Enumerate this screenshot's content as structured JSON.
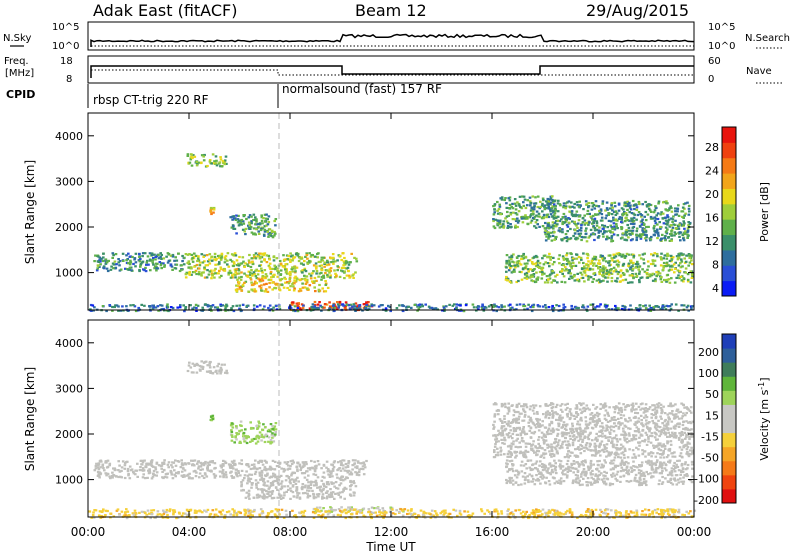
{
  "header": {
    "site": "Adak East (fitACF)",
    "beam": "Beam 12",
    "date": "29/Aug/2015"
  },
  "summary_panels": {
    "nsky_label": "N.Sky",
    "nsearch_label": "N.Search",
    "nsky_ticks": [
      "10^5",
      "10^0"
    ],
    "nsearch_ticks": [
      "10^5",
      "10^0"
    ],
    "freq_label_1": "Freq.",
    "freq_label_2": "[MHz]",
    "freq_ticks": [
      "18",
      "8"
    ],
    "nave_label": "Nave",
    "nave_ticks": [
      "60",
      "0"
    ],
    "cpid_label": "CPID",
    "cpid_segments": [
      {
        "label": "rbsp CT-trig 220 RF",
        "start_hour": 0,
        "end_hour": 7.5
      },
      {
        "label": "normalsound (fast) 157 RF",
        "start_hour": 7.5,
        "end_hour": 24
      }
    ]
  },
  "colors": {
    "power_scale": [
      "#0b1cf5",
      "#2a4fd6",
      "#2e6e9e",
      "#3a8f6a",
      "#5fb04a",
      "#9fce3a",
      "#e8d81a",
      "#f2a51a",
      "#f57a15",
      "#f0410f",
      "#e8140d"
    ],
    "velocity_scale": [
      "#1f3fb8",
      "#2e5f9a",
      "#3f7d5a",
      "#5fb53a",
      "#9ed45a",
      "#c8c8c4",
      "#c8c8c4",
      "#f5d03a",
      "#f5a526",
      "#f57a18",
      "#f0440f",
      "#e01010"
    ],
    "ground_scatter": "#c0c0bc"
  },
  "chart_data": [
    {
      "type": "heatmap",
      "title": "",
      "xlabel": "",
      "ylabel": "Slant Range [km]",
      "xlim": [
        0,
        24
      ],
      "ylim": [
        180,
        4500
      ],
      "yticks": [
        "4000",
        "3000",
        "2000",
        "1000"
      ],
      "colorbar": {
        "label": "Power [dB]",
        "range": [
          0,
          30
        ],
        "ticks": [
          "28",
          "24",
          "20",
          "16",
          "12",
          "8",
          "4"
        ]
      },
      "regions": [
        {
          "t0": 3.9,
          "t1": 5.5,
          "r0": 3350,
          "r1": 3620,
          "value": 13
        },
        {
          "t0": 4.8,
          "t1": 4.95,
          "r0": 2300,
          "r1": 2450,
          "value": 20
        },
        {
          "t0": 5.6,
          "t1": 7.4,
          "r0": 1800,
          "r1": 2300,
          "value": 10
        },
        {
          "t0": 0.2,
          "t1": 3.8,
          "r0": 1050,
          "r1": 1450,
          "value": 9
        },
        {
          "t0": 3.8,
          "t1": 10.6,
          "r0": 900,
          "r1": 1450,
          "value": 15
        },
        {
          "t0": 5.8,
          "t1": 9.5,
          "r0": 600,
          "r1": 900,
          "value": 18
        },
        {
          "t0": 8.0,
          "t1": 11.2,
          "r0": 200,
          "r1": 380,
          "value": 26
        },
        {
          "t0": 16.0,
          "t1": 18.5,
          "r0": 2000,
          "r1": 2700,
          "value": 11
        },
        {
          "t0": 18.0,
          "t1": 23.8,
          "r0": 1700,
          "r1": 2600,
          "value": 10
        },
        {
          "t0": 16.5,
          "t1": 23.9,
          "r0": 800,
          "r1": 1450,
          "value": 13
        },
        {
          "t0": 0.0,
          "t1": 24.0,
          "r0": 180,
          "r1": 330,
          "value": 7
        }
      ]
    },
    {
      "type": "heatmap",
      "title": "",
      "xlabel": "Time UT",
      "ylabel": "Slant Range [km]",
      "xlim": [
        0,
        24
      ],
      "ylim": [
        180,
        4500
      ],
      "xticks": [
        "00:00",
        "04:00",
        "08:00",
        "12:00",
        "16:00",
        "20:00",
        "00:00"
      ],
      "yticks": [
        "4000",
        "3000",
        "2000",
        "1000"
      ],
      "colorbar": {
        "label": "Velocity [m s^-1]",
        "range": [
          -250,
          250
        ],
        "ticks": [
          "200",
          "100",
          "50",
          "15",
          "-15",
          "-50",
          "-100",
          "-200"
        ]
      },
      "regions": [
        {
          "t0": 3.9,
          "t1": 5.5,
          "r0": 3350,
          "r1": 3620,
          "value": 0
        },
        {
          "t0": 4.8,
          "t1": 4.95,
          "r0": 2300,
          "r1": 2450,
          "value": 80
        },
        {
          "t0": 5.6,
          "t1": 7.4,
          "r0": 1800,
          "r1": 2300,
          "value": 60
        },
        {
          "t0": 0.2,
          "t1": 11.0,
          "r0": 1050,
          "r1": 1450,
          "value": 0
        },
        {
          "t0": 6.0,
          "t1": 10.6,
          "r0": 600,
          "r1": 1050,
          "value": 0
        },
        {
          "t0": 8.8,
          "t1": 12.5,
          "r0": 300,
          "r1": 420,
          "value": 30
        },
        {
          "t0": 16.0,
          "t1": 23.9,
          "r0": 1500,
          "r1": 2700,
          "value": 0
        },
        {
          "t0": 16.5,
          "t1": 23.9,
          "r0": 900,
          "r1": 1450,
          "value": 0
        },
        {
          "t0": 0.0,
          "t1": 24.0,
          "r0": 180,
          "r1": 380,
          "value": -60
        }
      ]
    }
  ]
}
